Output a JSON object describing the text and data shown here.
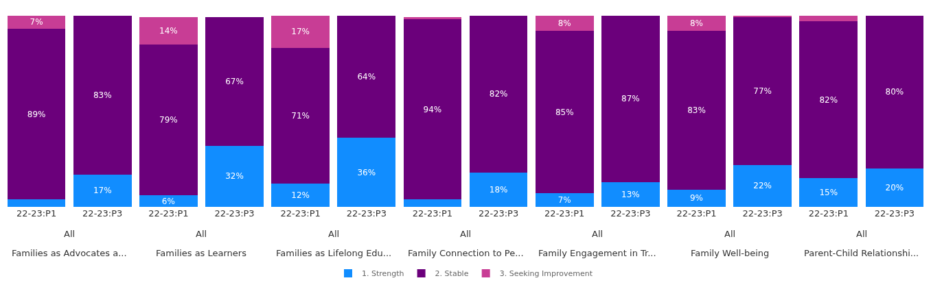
{
  "chart_data": {
    "type": "bar",
    "stacked": true,
    "categories": [
      "22-23:P1",
      "22-23:P3",
      "22-23:P1",
      "22-23:P3",
      "22-23:P1",
      "22-23:P3",
      "22-23:P1",
      "22-23:P3",
      "22-23:P1",
      "22-23:P3",
      "22-23:P1",
      "22-23:P3",
      "22-23:P1",
      "22-23:P3"
    ],
    "series": [
      {
        "name": "1. Strength",
        "color": "#118dff",
        "values": [
          4,
          17,
          6,
          32,
          12,
          36,
          4,
          18,
          7,
          13,
          9,
          22,
          15,
          20
        ],
        "value_labels": [
          null,
          "17%",
          "6%",
          "32%",
          "12%",
          "36%",
          null,
          "18%",
          "7%",
          "13%",
          "9%",
          "22%",
          "15%",
          "20%"
        ]
      },
      {
        "name": "2. Stable",
        "color": "#6b007b",
        "values": [
          89,
          83,
          79,
          67,
          71,
          64,
          94,
          82,
          85,
          87,
          83,
          77,
          82,
          80
        ],
        "value_labels": [
          "89%",
          "83%",
          "79%",
          "67%",
          "71%",
          "64%",
          "94%",
          "82%",
          "85%",
          "87%",
          "83%",
          "77%",
          "82%",
          "80%"
        ]
      },
      {
        "name": "3. Seeking Improvement",
        "color": "#c83d95",
        "values": [
          7,
          0,
          14,
          0,
          17,
          0,
          1,
          0,
          8,
          0,
          8,
          1,
          3,
          0
        ],
        "value_labels": [
          "7%",
          null,
          "14%",
          null,
          "17%",
          null,
          null,
          null,
          "8%",
          null,
          "8%",
          null,
          null,
          null
        ]
      }
    ],
    "annotations": [
      "All",
      "Families as Advocates a...",
      "All",
      "Families as Learners",
      "All",
      "Families as Lifelong Edu...",
      "All",
      "Family Connection to Pe...",
      "All",
      "Family Engagement in Tr...",
      "All",
      "Family Well-being",
      "All",
      "Parent-Child Relationshi..."
    ],
    "legend": "bottom"
  }
}
